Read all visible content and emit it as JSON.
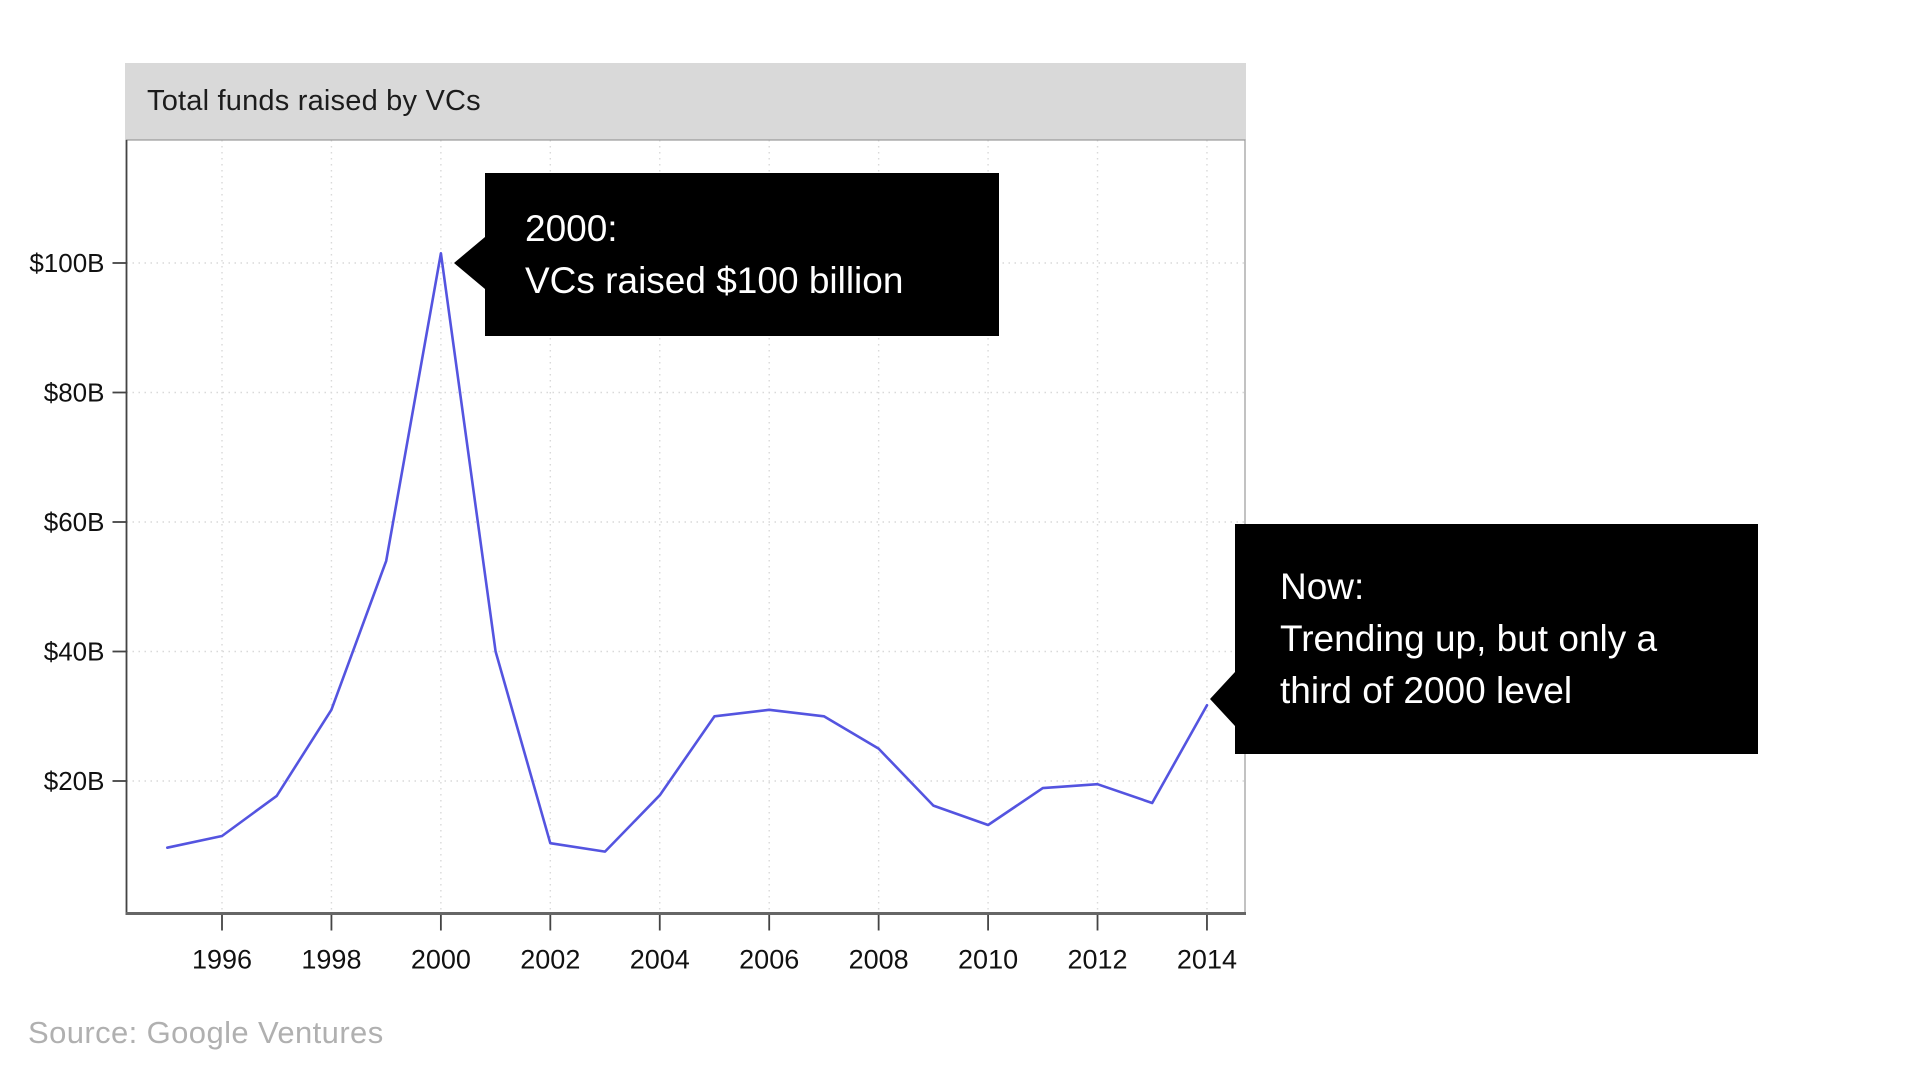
{
  "header": {
    "title": "Total funds raised by VCs"
  },
  "source": {
    "text": "Source: Google Ventures"
  },
  "colors": {
    "line": "#5454e0",
    "grid": "#d9d9d9",
    "plot_border": "#999999",
    "axis_left": "#444444",
    "axis_bottom": "#666666",
    "tick": "#444444",
    "tick_label": "#111111",
    "header_bg": "#d9d9d9",
    "callout_bg": "#000000",
    "callout_text": "#ffffff",
    "source_text": "#b0b0b0"
  },
  "chart_data": {
    "type": "line",
    "title": "Total funds raised by VCs",
    "series_name": "Total funds raised by VCs ($B)",
    "x": [
      1995,
      1996,
      1997,
      1998,
      1999,
      2000,
      2001,
      2002,
      2003,
      2004,
      2005,
      2006,
      2007,
      2008,
      2009,
      2010,
      2011,
      2012,
      2013,
      2014
    ],
    "values": [
      9.7,
      11.5,
      17.7,
      31,
      54,
      101.5,
      40,
      10.4,
      9.1,
      17.8,
      30,
      31,
      30,
      25,
      16.2,
      13.2,
      18.9,
      19.5,
      16.6,
      31.7
    ],
    "x_tick_years": [
      1996,
      1998,
      2000,
      2002,
      2004,
      2006,
      2008,
      2010,
      2012,
      2014
    ],
    "x_tick_labels": [
      "1996",
      "1998",
      "2000",
      "2002",
      "2004",
      "2006",
      "2008",
      "2010",
      "2012",
      "2014"
    ],
    "y_ticks": [
      {
        "value": 20,
        "label": "$20B"
      },
      {
        "value": 40,
        "label": "$40B"
      },
      {
        "value": 60,
        "label": "$60B"
      },
      {
        "value": 80,
        "label": "$80B"
      },
      {
        "value": 100,
        "label": "$100B"
      }
    ],
    "xlabel": "",
    "ylabel": "",
    "xlim": [
      1994.26,
      2014.7
    ],
    "ylim": [
      0,
      119
    ],
    "grid": "dotted",
    "legend": "none",
    "annotations": [
      {
        "target_year": 2000,
        "target_value": 101.5,
        "heading": "2000:",
        "lines": [
          "VCs raised $100 billion"
        ]
      },
      {
        "target_year": 2014,
        "target_value": 31.7,
        "heading": "Now:",
        "lines": [
          "Trending up, but only a",
          "third of 2000 level"
        ]
      }
    ]
  }
}
